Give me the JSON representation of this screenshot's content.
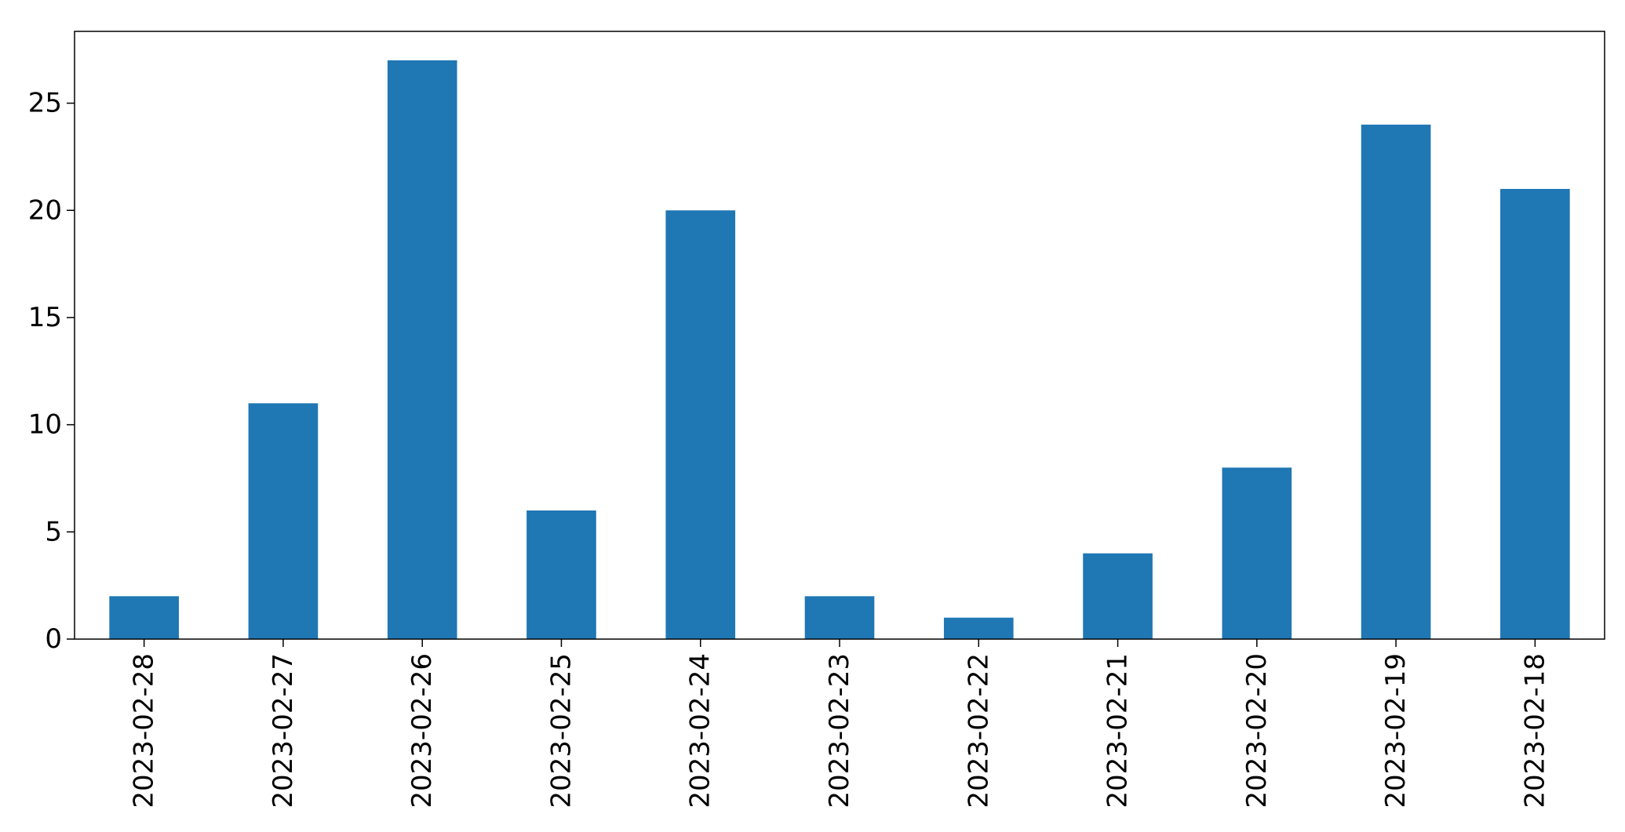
{
  "chart_data": {
    "type": "bar",
    "title": "",
    "xlabel": "",
    "ylabel": "",
    "categories": [
      "2023-02-28",
      "2023-02-27",
      "2023-02-26",
      "2023-02-25",
      "2023-02-24",
      "2023-02-23",
      "2023-02-22",
      "2023-02-21",
      "2023-02-20",
      "2023-02-19",
      "2023-02-18"
    ],
    "values": [
      2,
      11,
      27,
      6,
      20,
      2,
      1,
      4,
      8,
      24,
      21
    ],
    "ylim": [
      0,
      28.35
    ],
    "yticks": [
      0,
      5,
      10,
      15,
      20,
      25
    ],
    "grid": false,
    "bar_color": "#1f77b4"
  }
}
